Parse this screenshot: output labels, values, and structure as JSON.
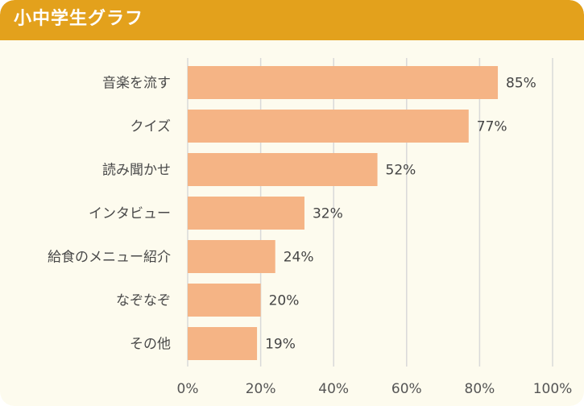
{
  "header": {
    "title": "小中学生グラフ"
  },
  "colors": {
    "header_bg": "#e3a11c",
    "bar": "#f5b485",
    "background": "#fdfbee",
    "grid": "#d9d9d9"
  },
  "chart_data": {
    "type": "bar",
    "orientation": "horizontal",
    "title": "",
    "xlabel": "",
    "ylabel": "",
    "categories": [
      "音楽を流す",
      "クイズ",
      "読み聞かせ",
      "インタビュー",
      "給食のメニュー紹介",
      "なぞなぞ",
      "その他"
    ],
    "values": [
      85,
      77,
      52,
      32,
      24,
      20,
      19
    ],
    "value_labels": [
      "85%",
      "77%",
      "52%",
      "32%",
      "24%",
      "20%",
      "19%"
    ],
    "xlim": [
      0,
      100
    ],
    "ticks": [
      0,
      20,
      40,
      60,
      80,
      100
    ],
    "tick_labels": [
      "0%",
      "20%",
      "40%",
      "60%",
      "80%",
      "100%"
    ],
    "grid": true,
    "legend": "none"
  }
}
